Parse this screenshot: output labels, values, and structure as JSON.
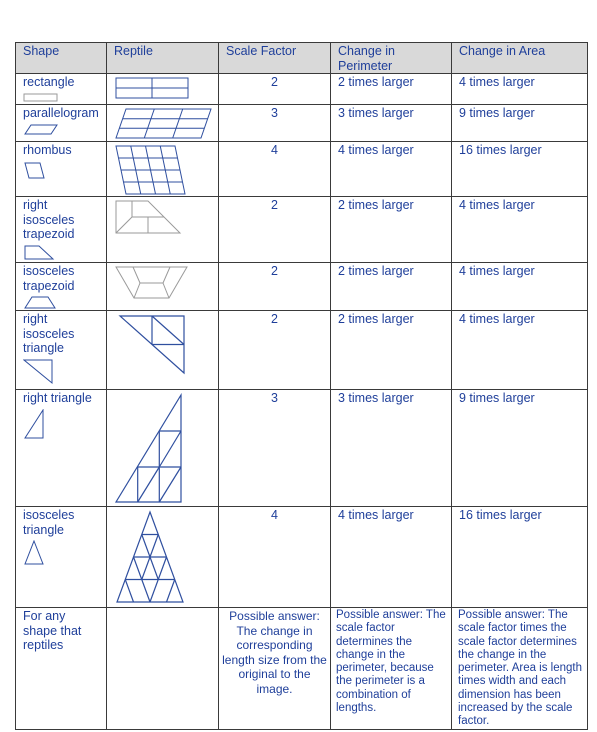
{
  "headers": [
    "Shape",
    "Reptile",
    "Scale Factor",
    "Change in Perimeter",
    "Change in Area"
  ],
  "rows": [
    {
      "shape": "rectangle",
      "icon": "rectangle-icon",
      "scale": "2",
      "perimeter": "2 times larger",
      "area": "4 times larger"
    },
    {
      "shape": "parallelogram",
      "icon": "parallelogram-icon",
      "scale": "3",
      "perimeter": "3 times larger",
      "area": "9 times larger"
    },
    {
      "shape": "rhombus",
      "icon": "rhombus-icon",
      "scale": "4",
      "perimeter": "4 times larger",
      "area": "16 times larger"
    },
    {
      "shape": "right isosceles trapezoid",
      "icon": "right-trapezoid-icon",
      "scale": "2",
      "perimeter": "2 times larger",
      "area": "4 times larger"
    },
    {
      "shape": "isosceles trapezoid",
      "icon": "isosceles-trapezoid-icon",
      "scale": "2",
      "perimeter": "2 times larger",
      "area": "4 times larger"
    },
    {
      "shape": "right isosceles triangle",
      "icon": "right-isosceles-triangle-icon",
      "scale": "2",
      "perimeter": "2 times larger",
      "area": "4 times larger"
    },
    {
      "shape": "right triangle",
      "icon": "right-triangle-icon",
      "scale": "3",
      "perimeter": "3 times larger",
      "area": "9 times larger"
    },
    {
      "shape": "isosceles triangle",
      "icon": "isosceles-triangle-icon",
      "scale": "4",
      "perimeter": "4 times larger",
      "area": "16 times larger"
    }
  ],
  "footer": {
    "shape": "For any shape that reptiles",
    "scale": "Possible answer: The change in corresponding length size from the original to the image.",
    "perimeter": "Possible answer: The scale factor determines the change in the perimeter, because the perimeter is a combination of lengths.",
    "area": "Possible answer: The scale factor times the scale factor determines the change in the perimeter. Area is length times width and each dimension has been increased by the scale factor."
  },
  "colors": {
    "text": "#1f3f9a",
    "lines": "#2f4f9f",
    "header_bg": "#d9d9d9",
    "border": "#3a3a3a"
  }
}
